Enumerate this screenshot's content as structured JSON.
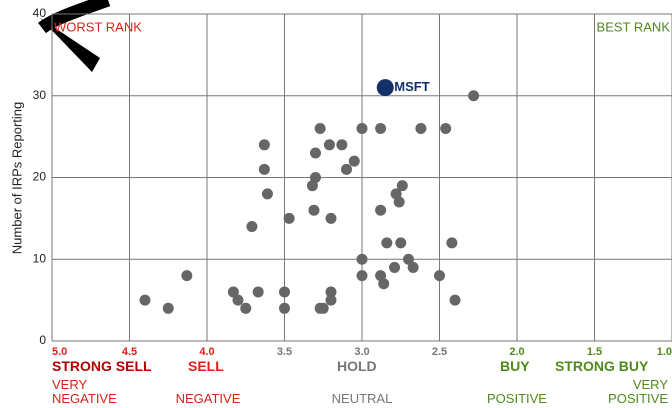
{
  "chart_data": {
    "type": "scatter",
    "y_label": "Number of IRPs Reporting",
    "annotations": [
      "WORST RANK",
      "BEST RANK"
    ],
    "ratings": [
      "STRONG SELL",
      "SELL",
      "HOLD",
      "BUY",
      "STRONG BUY"
    ],
    "sentiments": [
      "VERY NEGATIVE",
      "NEGATIVE",
      "NEUTRAL",
      "POSITIVE",
      "VERY POSITIVE"
    ],
    "x": [
      4.4,
      4.25,
      4.13,
      3.83,
      3.8,
      3.75,
      3.67,
      3.71,
      3.63,
      3.63,
      3.61,
      3.5,
      3.5,
      3.47,
      3.32,
      3.3,
      3.3,
      3.31,
      3.27,
      3.27,
      3.25,
      3.21,
      3.2,
      3.2,
      3.2,
      3.13,
      3.1,
      3.05,
      3.0,
      3.0,
      3.0,
      2.88,
      2.88,
      2.88,
      2.86,
      2.84,
      2.78,
      2.76,
      2.74,
      2.75,
      2.79,
      2.7,
      2.67,
      2.62,
      2.5,
      2.46,
      2.42,
      2.4,
      2.28
    ],
    "values": [
      5,
      4,
      8,
      6,
      5,
      4,
      6,
      14,
      24,
      21,
      18,
      6,
      4,
      15,
      19,
      20,
      23,
      16,
      26,
      4,
      4,
      24,
      15,
      6,
      5,
      24,
      21,
      22,
      26,
      10,
      8,
      26,
      16,
      8,
      7,
      12,
      18,
      17,
      19,
      12,
      9,
      10,
      9,
      26,
      8,
      26,
      12,
      5,
      30
    ],
    "color": "#666666",
    "highlight": {
      "label": "MSFT",
      "x": 2.85,
      "value": 31,
      "color": "#14306b"
    },
    "xlim": [
      5.0,
      1.0
    ],
    "xticks": [
      {
        "value": 5,
        "label": "5.0"
      },
      4.5,
      {
        "value": 4,
        "label": "4.0"
      },
      3.5,
      {
        "value": 3,
        "label": "3.0"
      },
      2.5,
      {
        "value": 2,
        "label": "2.0"
      },
      1.5,
      {
        "value": 1,
        "label": "1.0"
      }
    ],
    "ylim": [
      0,
      40
    ],
    "yticks": [
      0,
      10,
      20,
      30,
      40
    ],
    "grid": true
  }
}
